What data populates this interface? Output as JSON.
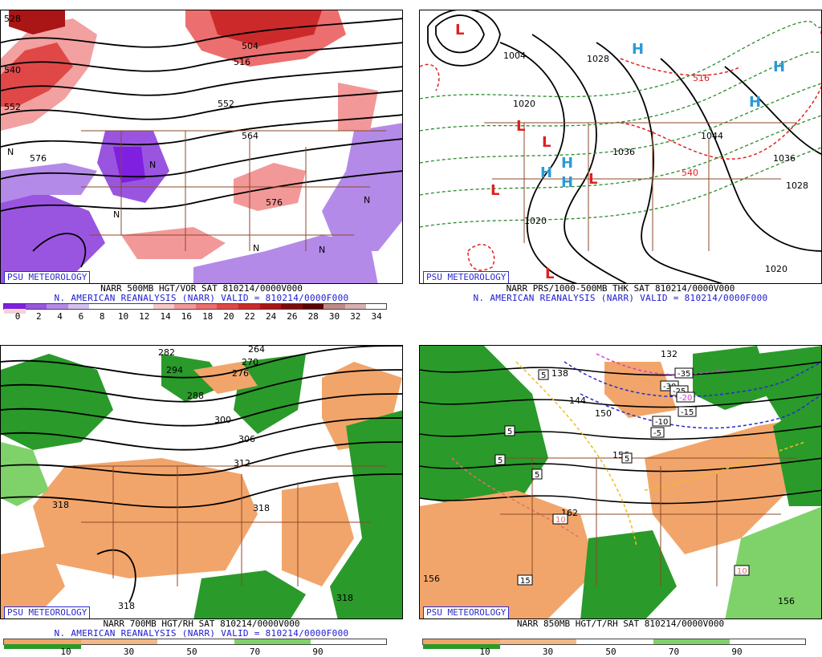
{
  "panels": [
    {
      "id": "vor500",
      "psu_label": "PSU METEOROLOGY",
      "caption1": "NARR 500MB HGT/VOR SAT 810214/0000V000",
      "caption2": "N. AMERICAN REANALYSIS (NARR) VALID = 810214/0000F000",
      "colorbar": {
        "labels": [
          "0",
          "2",
          "4",
          "6",
          "8",
          "10",
          "12",
          "14",
          "16",
          "18",
          "20",
          "22",
          "24",
          "26",
          "28",
          "30",
          "32",
          "34"
        ],
        "colors": [
          "#7f1fe0",
          "#9a55e0",
          "#b48ae8",
          "#d4c0f0",
          "#ffffff",
          "#ffffff",
          "#ffffff",
          "#f6c8c8",
          "#f29898",
          "#ec6e6e",
          "#e04848",
          "#cc2a2a",
          "#aa1515",
          "#800a0a",
          "#5a0404",
          "#c08a8a",
          "#d8b0b0",
          "#f2d4d4"
        ]
      },
      "map_labels": [
        "528",
        "540",
        "552",
        "504",
        "516",
        "552",
        "564",
        "576",
        "576",
        "N",
        "N",
        "N",
        "N",
        "N",
        "N"
      ]
    },
    {
      "id": "prs1000",
      "psu_label": "PSU METEOROLOGY",
      "caption1": "NARR PRS/1000-500MB THK SAT 810214/0000V000",
      "caption2": "N. AMERICAN REANALYSIS (NARR) VALID = 810214/0000F000",
      "map_labels": [
        "L",
        "L",
        "L",
        "L",
        "L",
        "L",
        "H",
        "H",
        "H",
        "H",
        "H",
        "H",
        "1020",
        "1028",
        "1036",
        "1020",
        "1036",
        "1028",
        "1020",
        "1004",
        "516",
        "540",
        "1044"
      ],
      "colors": {
        "high": "#2a9ad8",
        "low": "#e02020",
        "thk_warm": "#e02020",
        "thk_cold": "#2a8a2a"
      }
    },
    {
      "id": "rh700",
      "psu_label": "PSU METEOROLOGY",
      "caption1": "NARR 700MB HGT/RH SAT 810214/0000V000",
      "caption2": "N. AMERICAN REANALYSIS (NARR) VALID = 810214/0000F000",
      "colorbar": {
        "labels": [
          "10",
          "30",
          "50",
          "70",
          "90"
        ],
        "colors": [
          "#f2a56a",
          "#f4b888",
          "#ffffff",
          "#7fd26a",
          "#2a9a2a"
        ]
      },
      "map_labels": [
        "282",
        "264",
        "270",
        "276",
        "288",
        "294",
        "300",
        "306",
        "312",
        "318",
        "318",
        "318",
        "318"
      ]
    },
    {
      "id": "rh850",
      "psu_label": "PSU METEOROLOGY",
      "caption1": "NARR 850MB HGT/T/RH SAT 810214/0000V000",
      "caption2": "",
      "colorbar": {
        "labels": [
          "10",
          "30",
          "50",
          "70",
          "90"
        ],
        "colors": [
          "#f2a56a",
          "#f4b888",
          "#ffffff",
          "#7fd26a",
          "#2a9a2a"
        ]
      },
      "map_labels": [
        "132",
        "138",
        "144",
        "150",
        "156",
        "162",
        "156",
        "156",
        "-35",
        "-30",
        "-25",
        "-20",
        "-15",
        "-10",
        "-5",
        "5",
        "5",
        "5",
        "5",
        "5",
        "10",
        "10",
        "15"
      ]
    }
  ]
}
